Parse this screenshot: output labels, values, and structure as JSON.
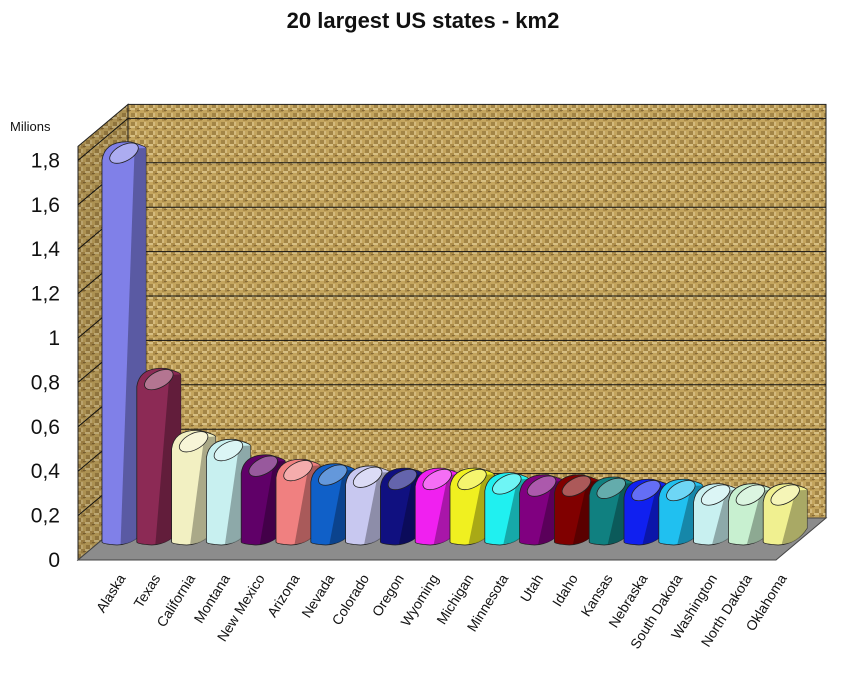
{
  "chart_data": {
    "type": "bar",
    "title": "20 largest US states - km2",
    "ylabel": "Milions",
    "xlabel": "",
    "ylim": [
      0,
      1.8
    ],
    "y_ticks": [
      "0",
      "0,2",
      "0,4",
      "0,6",
      "0,8",
      "1",
      "1,2",
      "1,4",
      "1,6",
      "1,8"
    ],
    "grid": true,
    "categories": [
      "Alaska",
      "Texas",
      "California",
      "Montana",
      "New Mexico",
      "Arizona",
      "Nevada",
      "Colorado",
      "Oregon",
      "Wyoming",
      "Michigan",
      "Minnesota",
      "Utah",
      "Idaho",
      "Kansas",
      "Nebraska",
      "South Dakota",
      "Washington",
      "North Dakota",
      "Oklahoma"
    ],
    "values": [
      1.72,
      0.7,
      0.42,
      0.38,
      0.31,
      0.29,
      0.27,
      0.26,
      0.25,
      0.25,
      0.25,
      0.23,
      0.22,
      0.22,
      0.21,
      0.2,
      0.2,
      0.18,
      0.18,
      0.18
    ],
    "colors": [
      "#8080e8",
      "#8c2a55",
      "#f2f0c2",
      "#c8f0f0",
      "#600068",
      "#f08080",
      "#1060c8",
      "#c8c8f0",
      "#101080",
      "#f020f0",
      "#f0f020",
      "#20f0f0",
      "#800080",
      "#800000",
      "#108080",
      "#1020f0",
      "#20c0f0",
      "#c8f0f0",
      "#c8f0d0",
      "#f0f090"
    ]
  }
}
